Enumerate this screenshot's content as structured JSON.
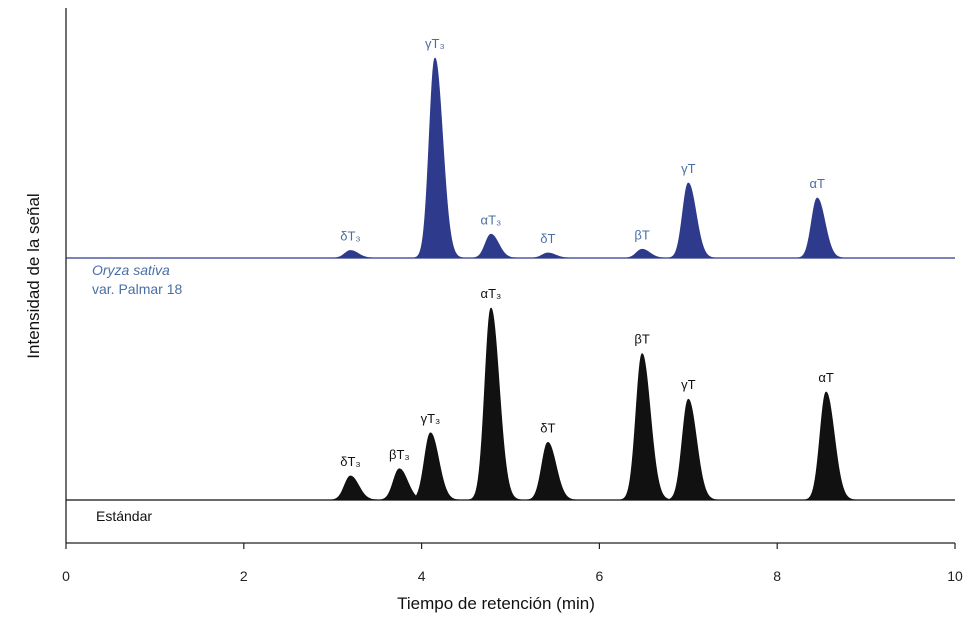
{
  "chart_data": {
    "type": "area",
    "title": "",
    "xlabel": "Tiempo de retención (min)",
    "ylabel": "Intensidad de la señal",
    "xlim": [
      0,
      10
    ],
    "x_ticks": [
      0,
      2,
      4,
      6,
      8,
      10
    ],
    "grid": false,
    "series": [
      {
        "label_lines": [
          "Oryza sativa",
          "var. Palmar 18"
        ],
        "color": "#2E3A8C",
        "label_color": "#4A6FA5",
        "peaks": [
          {
            "name": "δT₃",
            "rt": 3.2,
            "height": 0.03
          },
          {
            "name": "γT₃",
            "rt": 4.15,
            "height": 0.8
          },
          {
            "name": "αT₃",
            "rt": 4.78,
            "height": 0.095
          },
          {
            "name": "δT",
            "rt": 5.42,
            "height": 0.02
          },
          {
            "name": "βT",
            "rt": 6.48,
            "height": 0.035
          },
          {
            "name": "γT",
            "rt": 7.0,
            "height": 0.3
          },
          {
            "name": "αT",
            "rt": 8.45,
            "height": 0.24
          }
        ]
      },
      {
        "label_lines": [
          "Estándar"
        ],
        "color": "#111111",
        "label_color": "#111111",
        "peaks": [
          {
            "name": "δT₃",
            "rt": 3.2,
            "height": 0.1
          },
          {
            "name": "βT₃",
            "rt": 3.75,
            "height": 0.13
          },
          {
            "name": "γT₃",
            "rt": 4.1,
            "height": 0.28
          },
          {
            "name": "αT₃",
            "rt": 4.78,
            "height": 0.8
          },
          {
            "name": "δT",
            "rt": 5.42,
            "height": 0.24
          },
          {
            "name": "βT",
            "rt": 6.48,
            "height": 0.61
          },
          {
            "name": "γT",
            "rt": 7.0,
            "height": 0.42
          },
          {
            "name": "αT",
            "rt": 8.55,
            "height": 0.45
          }
        ]
      }
    ]
  }
}
